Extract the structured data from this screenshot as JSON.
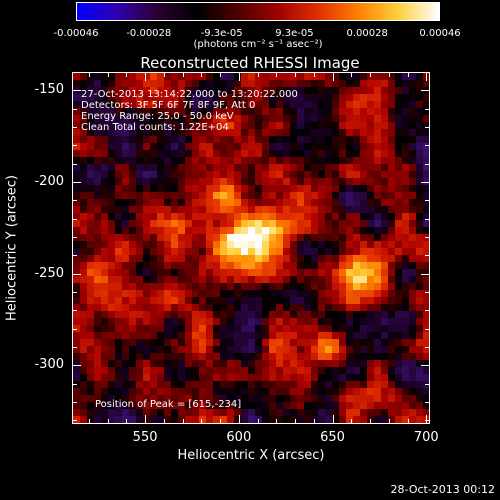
{
  "colorbar": {
    "tick_labels": [
      "-0.00046",
      "-0.00028",
      "-9.3e-05",
      "9.3e-05",
      "0.00028",
      "0.00046"
    ],
    "unit_label": "(photons cm⁻² s⁻¹ asec⁻²)",
    "range": [
      -0.00046,
      0.00046
    ],
    "colors": [
      "#0000ff",
      "#3000b0",
      "#2a0030",
      "#000000",
      "#500000",
      "#a00000",
      "#e03000",
      "#ff8000",
      "#ffd040",
      "#ffffff"
    ]
  },
  "title": "Reconstructed RHESSI Image",
  "annotations": {
    "line1": "27-Oct-2013 13:14:22.000 to 13:20:22.000",
    "line2": "Detectors: 3F 5F 6F 7F 8F 9F, Att 0",
    "line3": "Energy Range: 25.0 - 50.0 keV",
    "line4": "Clean    Total counts: 1.22E+04",
    "peak": "Position of Peak = [615,-234]"
  },
  "axes": {
    "xlabel": "Heliocentric X (arcsec)",
    "ylabel": "Heliocentric Y (arcsec)",
    "x_tick_labels": [
      "550",
      "600",
      "650",
      "700"
    ],
    "y_tick_labels": [
      "-150",
      "-200",
      "-250",
      "-300"
    ]
  },
  "footer_date": "28-Oct-2013 00:12",
  "chart_data": {
    "type": "heatmap",
    "title": "Reconstructed RHESSI Image",
    "xlabel": "Heliocentric X (arcsec)",
    "ylabel": "Heliocentric Y (arcsec)",
    "xlim": [
      511,
      702
    ],
    "ylim": [
      -332,
      -140
    ],
    "x_ticks": [
      550,
      600,
      650,
      700
    ],
    "y_ticks": [
      -150,
      -200,
      -250,
      -300
    ],
    "value_range": [
      -0.00046,
      0.00046
    ],
    "peak_position": [
      615,
      -234
    ],
    "sources": [
      {
        "x": 607,
        "y": -232,
        "sigma": 11,
        "amplitude": 0.00046
      },
      {
        "x": 668,
        "y": -250,
        "sigma": 7,
        "amplitude": 0.00026
      },
      {
        "x": 590,
        "y": -200,
        "sigma": 15,
        "amplitude": 0.00015
      },
      {
        "x": 545,
        "y": -260,
        "sigma": 18,
        "amplitude": 0.00016
      },
      {
        "x": 640,
        "y": -285,
        "sigma": 14,
        "amplitude": 0.00014
      }
    ]
  }
}
